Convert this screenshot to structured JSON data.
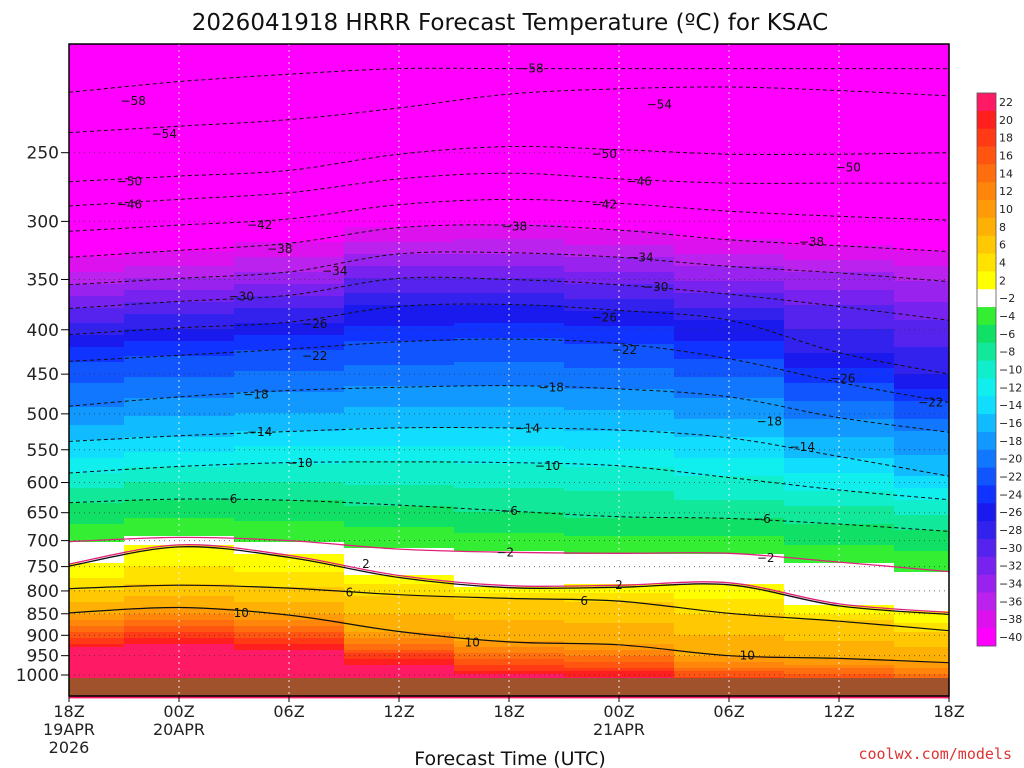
{
  "chart_data": {
    "type": "heatmap",
    "title": "2026041918 HRRR Forecast Temperature (ºC) for KSAC",
    "xlabel": "Forecast Time (UTC)",
    "ylabel": "",
    "credit": "coolwx.com/models",
    "x_hours": [
      0,
      6,
      12,
      18,
      24,
      30,
      36,
      42,
      48
    ],
    "x_ticks": [
      {
        "hour": 0,
        "lines": [
          "18Z",
          "19APR",
          "2026"
        ]
      },
      {
        "hour": 6,
        "lines": [
          "00Z",
          "20APR"
        ]
      },
      {
        "hour": 12,
        "lines": [
          "06Z"
        ]
      },
      {
        "hour": 18,
        "lines": [
          "12Z"
        ]
      },
      {
        "hour": 24,
        "lines": [
          "18Z"
        ]
      },
      {
        "hour": 30,
        "lines": [
          "00Z",
          "21APR"
        ]
      },
      {
        "hour": 36,
        "lines": [
          "06Z"
        ]
      },
      {
        "hour": 42,
        "lines": [
          "12Z"
        ]
      },
      {
        "hour": 48,
        "lines": [
          "18Z"
        ]
      }
    ],
    "y_levels_hpa": [
      250,
      300,
      350,
      400,
      450,
      500,
      550,
      600,
      650,
      700,
      750,
      800,
      850,
      900,
      950,
      1000
    ],
    "ylim_hpa": [
      200,
      1020
    ],
    "color_scale": {
      "levels": [
        22,
        20,
        18,
        16,
        14,
        12,
        10,
        8,
        6,
        4,
        2,
        -2,
        -4,
        -6,
        -8,
        -10,
        -12,
        -14,
        -16,
        -18,
        -20,
        -22,
        -24,
        -26,
        -28,
        -30,
        -32,
        -34,
        -36,
        -38,
        -40
      ],
      "colors": [
        "#ff1a66",
        "#ff1f1f",
        "#ff3a14",
        "#ff5511",
        "#ff6e0e",
        "#ff850b",
        "#ff9b08",
        "#ffb005",
        "#ffc803",
        "#ffe200",
        "#ffff00",
        "#ffffff",
        "#33ee33",
        "#11e066",
        "#11e899",
        "#11eecc",
        "#11eeee",
        "#11ddff",
        "#11bbff",
        "#1199ff",
        "#1177ff",
        "#1155ff",
        "#1133ff",
        "#1a1aee",
        "#3322ee",
        "#5522ee",
        "#7722ee",
        "#9922ee",
        "#bb22ee",
        "#dd11ee",
        "#ff00ff"
      ]
    },
    "ground_color": "#a0522d",
    "isotherms": [
      {
        "temp": -58,
        "label": "-58",
        "levels": [
          213,
          207,
          203,
          200,
          200,
          200,
          200,
          200,
          200
        ]
      },
      {
        "temp": -54,
        "label": "-54",
        "levels": [
          237,
          233,
          229,
          222,
          214,
          211,
          210,
          212,
          215
        ]
      },
      {
        "temp": -50,
        "label": "-50",
        "levels": [
          270,
          266,
          262,
          251,
          246,
          248,
          251,
          251,
          250
        ]
      },
      {
        "temp": -46,
        "label": "-46",
        "levels": [
          288,
          283,
          278,
          268,
          264,
          268,
          271,
          271,
          271
        ]
      },
      {
        "temp": -42,
        "label": "-42",
        "levels": [
          308,
          303,
          298,
          287,
          283,
          286,
          292,
          296,
          299
        ]
      },
      {
        "temp": -38,
        "label": "-38",
        "levels": [
          330,
          324,
          318,
          305,
          303,
          307,
          315,
          320,
          325
        ]
      },
      {
        "temp": -34,
        "label": "-34",
        "levels": [
          355,
          349,
          343,
          327,
          326,
          330,
          338,
          344,
          352
        ]
      },
      {
        "temp": -30,
        "label": "-30",
        "levels": [
          378,
          371,
          365,
          349,
          350,
          355,
          364,
          376,
          390
        ]
      },
      {
        "temp": -26,
        "label": "-26",
        "levels": [
          405,
          398,
          392,
          376,
          374,
          380,
          390,
          425,
          450
        ]
      },
      {
        "temp": -22,
        "label": "-22",
        "levels": [
          435,
          428,
          421,
          413,
          410,
          415,
          432,
          460,
          485
        ]
      },
      {
        "temp": -18,
        "label": "-18",
        "levels": [
          490,
          478,
          470,
          466,
          464,
          468,
          478,
          505,
          525
        ]
      },
      {
        "temp": -14,
        "label": "-14",
        "levels": [
          538,
          530,
          524,
          519,
          519,
          522,
          533,
          560,
          590
        ]
      },
      {
        "temp": -10,
        "label": "-10",
        "levels": [
          585,
          575,
          569,
          568,
          569,
          574,
          592,
          612,
          628
        ]
      },
      {
        "temp": -6,
        "label": "-6",
        "levels": [
          633,
          627,
          629,
          637,
          647,
          657,
          660,
          670,
          683
        ]
      },
      {
        "temp": -2,
        "label": "-2",
        "levels": [
          702,
          694,
          700,
          716,
          722,
          724,
          724,
          741,
          760
        ]
      },
      {
        "temp": 2,
        "label": "2",
        "levels": [
          745,
          708,
          728,
          768,
          789,
          788,
          783,
          828,
          847
        ]
      },
      {
        "temp": 6,
        "label": "6",
        "levels": [
          795,
          788,
          794,
          808,
          816,
          822,
          849,
          867,
          889
        ]
      },
      {
        "temp": 10,
        "label": "10",
        "levels": [
          848,
          836,
          853,
          891,
          916,
          923,
          950,
          957,
          968
        ]
      }
    ],
    "contour_labels": [
      {
        "label": "-58",
        "hour": 3.5,
        "hpa": 218
      },
      {
        "label": "-58",
        "hour": 25.2,
        "hpa": 200
      },
      {
        "label": "-54",
        "hour": 5.2,
        "hpa": 238
      },
      {
        "label": "-54",
        "hour": 32.2,
        "hpa": 220
      },
      {
        "label": "-50",
        "hour": 3.3,
        "hpa": 270
      },
      {
        "label": "-50",
        "hour": 29.2,
        "hpa": 251
      },
      {
        "label": "-50",
        "hour": 42.5,
        "hpa": 260
      },
      {
        "label": "-46",
        "hour": 3.3,
        "hpa": 287
      },
      {
        "label": "-46",
        "hour": 31.1,
        "hpa": 270
      },
      {
        "label": "-42",
        "hour": 10.4,
        "hpa": 303
      },
      {
        "label": "-42",
        "hour": 29.2,
        "hpa": 287
      },
      {
        "label": "-38",
        "hour": 11.5,
        "hpa": 323
      },
      {
        "label": "-38",
        "hour": 24.3,
        "hpa": 304
      },
      {
        "label": "-38",
        "hour": 40.5,
        "hpa": 317
      },
      {
        "label": "-34",
        "hour": 14.5,
        "hpa": 342
      },
      {
        "label": "-34",
        "hour": 31.2,
        "hpa": 330
      },
      {
        "label": "-30",
        "hour": 9.4,
        "hpa": 366
      },
      {
        "label": "-30",
        "hour": 32.0,
        "hpa": 357
      },
      {
        "label": "-26",
        "hour": 13.4,
        "hpa": 394
      },
      {
        "label": "-26",
        "hour": 29.2,
        "hpa": 387
      },
      {
        "label": "-26",
        "hour": 42.2,
        "hpa": 455
      },
      {
        "label": "-22",
        "hour": 13.4,
        "hpa": 429
      },
      {
        "label": "-22",
        "hour": 30.3,
        "hpa": 422
      },
      {
        "label": "-22",
        "hour": 47.0,
        "hpa": 485
      },
      {
        "label": "-18",
        "hour": 10.2,
        "hpa": 475
      },
      {
        "label": "-18",
        "hour": 26.3,
        "hpa": 466
      },
      {
        "label": "-18",
        "hour": 38.2,
        "hpa": 510
      },
      {
        "label": "-14",
        "hour": 10.4,
        "hpa": 525
      },
      {
        "label": "-14",
        "hour": 25.0,
        "hpa": 520
      },
      {
        "label": "-14",
        "hour": 40.0,
        "hpa": 546
      },
      {
        "label": "-10",
        "hour": 12.6,
        "hpa": 570
      },
      {
        "label": "-10",
        "hour": 26.1,
        "hpa": 574
      },
      {
        "label": "-6",
        "hour": 8.7,
        "hpa": 627
      },
      {
        "label": "-6",
        "hour": 24.0,
        "hpa": 647
      },
      {
        "label": "-6",
        "hour": 37.8,
        "hpa": 661
      },
      {
        "label": "-2",
        "hour": 23.8,
        "hpa": 722
      },
      {
        "label": "-2",
        "hour": 38.0,
        "hpa": 733
      },
      {
        "label": "2",
        "hour": 16.2,
        "hpa": 745
      },
      {
        "label": "2",
        "hour": 30.0,
        "hpa": 788
      },
      {
        "label": "6",
        "hour": 15.3,
        "hpa": 803
      },
      {
        "label": "6",
        "hour": 28.1,
        "hpa": 822
      },
      {
        "label": "10",
        "hour": 9.4,
        "hpa": 848
      },
      {
        "label": "10",
        "hour": 22.0,
        "hpa": 917
      },
      {
        "label": "10",
        "hour": 37.0,
        "hpa": 950
      }
    ]
  }
}
